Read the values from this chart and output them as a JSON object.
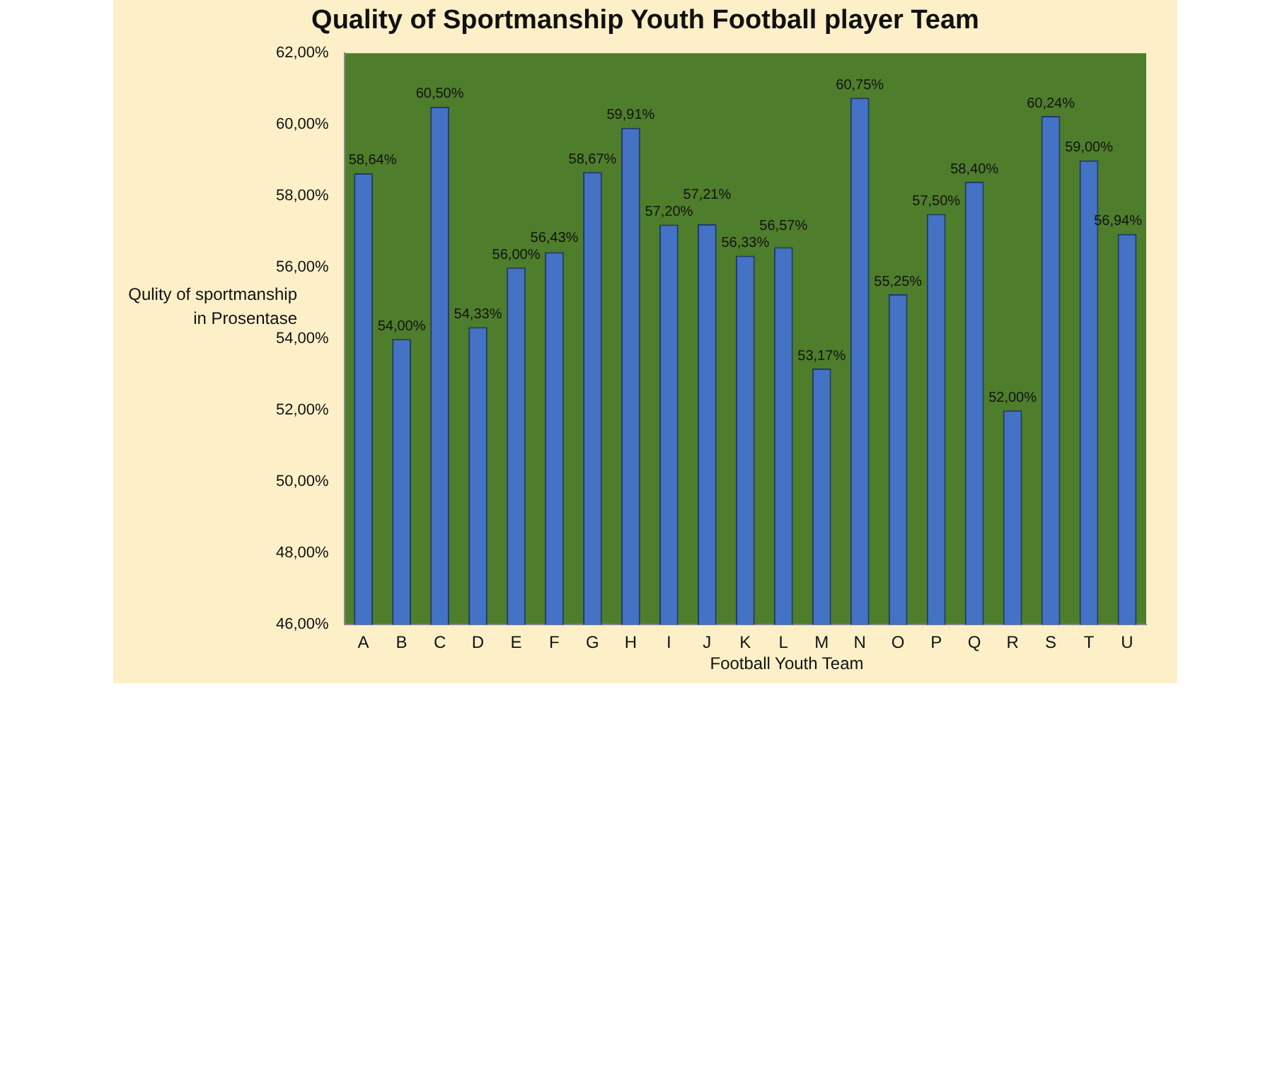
{
  "chart_data": {
    "type": "bar",
    "title": "Quality of Sportmanship Youth Football player Team",
    "xlabel": "Football Youth Team",
    "ylabel": "Qulity of sportmanship in Prosentase",
    "categories": [
      "A",
      "B",
      "C",
      "D",
      "E",
      "F",
      "G",
      "H",
      "I",
      "J",
      "K",
      "L",
      "M",
      "N",
      "O",
      "P",
      "Q",
      "R",
      "S",
      "T",
      "U"
    ],
    "values": [
      58.64,
      54.0,
      60.5,
      54.33,
      56.0,
      56.43,
      58.67,
      59.91,
      57.2,
      57.21,
      56.33,
      56.57,
      53.17,
      60.75,
      55.25,
      57.5,
      58.4,
      52.0,
      60.24,
      59.0,
      56.94
    ],
    "value_labels": [
      "58,64%",
      "54,00%",
      "60,50%",
      "54,33%",
      "56,00%",
      "56,43%",
      "58,67%",
      "59,91%",
      "57,20%",
      "57,21%",
      "56,33%",
      "56,57%",
      "53,17%",
      "60,75%",
      "55,25%",
      "57,50%",
      "58,40%",
      "52,00%",
      "60,24%",
      "59,00%",
      "56,94%"
    ],
    "color": "#4472c4",
    "ylim": [
      46,
      62
    ],
    "yticks": [
      {
        "value": 46,
        "label": "46,00%"
      },
      {
        "value": 48,
        "label": "48,00%"
      },
      {
        "value": 50,
        "label": "50,00%"
      },
      {
        "value": 52,
        "label": "52,00%"
      },
      {
        "value": 54,
        "label": "54,00%"
      },
      {
        "value": 56,
        "label": "56,00%"
      },
      {
        "value": 58,
        "label": "58,00%"
      },
      {
        "value": 60,
        "label": "60,00%"
      },
      {
        "value": 62,
        "label": "62,00%"
      }
    ],
    "grid": false,
    "legend": false
  }
}
